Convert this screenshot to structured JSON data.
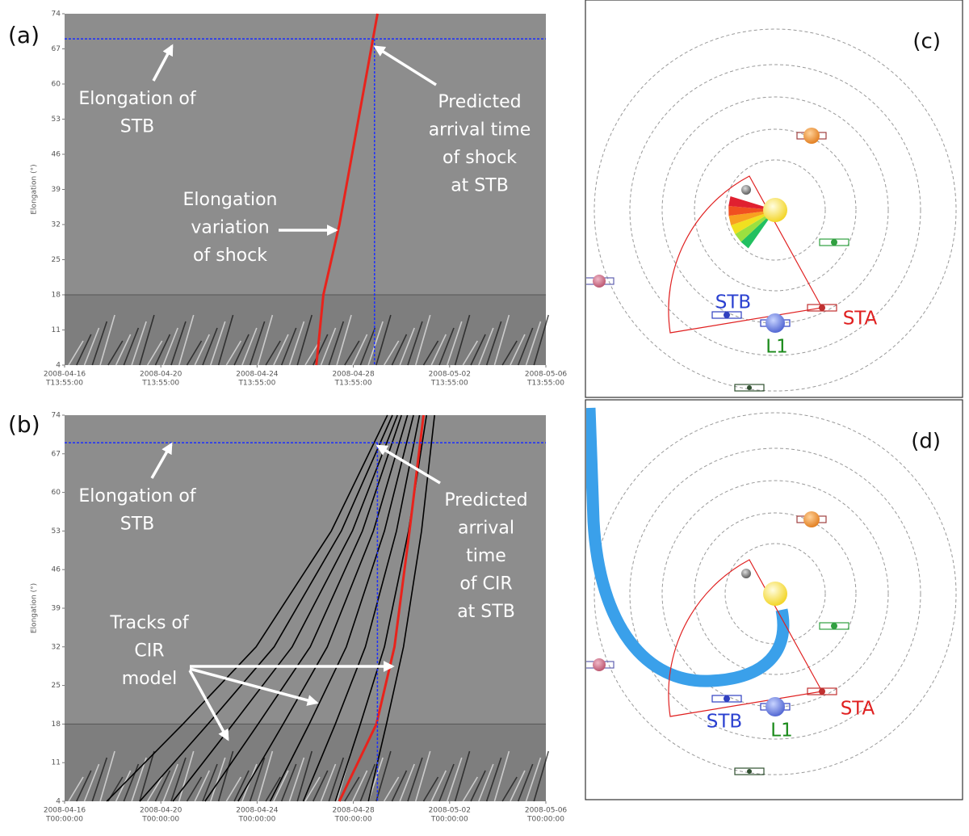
{
  "chart_data": [
    {
      "type": "line",
      "panel_label": "(a)",
      "ylabel": "Elongation (°)",
      "ylim": [
        4,
        74
      ],
      "yticks": [
        4,
        11,
        18,
        25,
        32,
        39,
        46,
        53,
        60,
        67,
        74
      ],
      "xlim": [
        "2008-04-16T13:55:00",
        "2008-05-06T13:55:00"
      ],
      "xticks": [
        {
          "value": "2008-04-16T13:55:00",
          "label": [
            "2008-04-16",
            "T13:55:00"
          ]
        },
        {
          "value": "2008-04-20T13:55:00",
          "label": [
            "2008-04-20",
            "T13:55:00"
          ]
        },
        {
          "value": "2008-04-24T13:55:00",
          "label": [
            "2008-04-24",
            "T13:55:00"
          ]
        },
        {
          "value": "2008-04-28T13:55:00",
          "label": [
            "2008-04-28",
            "T13:55:00"
          ]
        },
        {
          "value": "2008-05-02T13:55:00",
          "label": [
            "2008-05-02",
            "T13:55:00"
          ]
        },
        {
          "value": "2008-05-06T13:55:00",
          "label": [
            "2008-05-06",
            "T13:55:00"
          ]
        }
      ],
      "series": [
        {
          "color": "#e8231c",
          "line_width": 3,
          "x": [
            "2008-04-27T01:00",
            "2008-04-27T08:00",
            "2008-04-28T00:00",
            "2008-04-28T19:00",
            "2008-04-29T14:00"
          ],
          "values": [
            4,
            18,
            32,
            53,
            74
          ]
        }
      ],
      "stb_elongation": 69,
      "predicted_arrival": "2008-04-29T11:00",
      "annotations": [
        {
          "text": [
            "Elongation of",
            "STB"
          ]
        },
        {
          "text": [
            "Predicted",
            "arrival time",
            "of shock",
            "at STB"
          ]
        },
        {
          "text": [
            "Elongation",
            "variation",
            "of shock"
          ]
        }
      ]
    },
    {
      "type": "line",
      "panel_label": "(b)",
      "ylabel": "Elongation (°)",
      "ylim": [
        4,
        74
      ],
      "yticks": [
        4,
        11,
        18,
        25,
        32,
        39,
        46,
        53,
        60,
        67,
        74
      ],
      "xlim": [
        "2008-04-16T00:00:00",
        "2008-05-06T00:00:00"
      ],
      "xticks": [
        {
          "value": "2008-04-16T00:00:00",
          "label": [
            "2008-04-16",
            "T00:00:00"
          ]
        },
        {
          "value": "2008-04-20T00:00:00",
          "label": [
            "2008-04-20",
            "T00:00:00"
          ]
        },
        {
          "value": "2008-04-24T00:00:00",
          "label": [
            "2008-04-24",
            "T00:00:00"
          ]
        },
        {
          "value": "2008-04-28T00:00:00",
          "label": [
            "2008-04-28",
            "T00:00:00"
          ]
        },
        {
          "value": "2008-05-02T00:00:00",
          "label": [
            "2008-05-02",
            "T00:00:00"
          ]
        },
        {
          "value": "2008-05-06T00:00:00",
          "label": [
            "2008-05-06",
            "T00:00:00"
          ]
        }
      ],
      "series": [
        {
          "color": "#000000",
          "line_width": 1.6,
          "x": [
            "2008-04-17T18:00",
            "2008-04-20T22:00",
            "2008-04-23T23:00",
            "2008-04-27T02:00",
            "2008-04-29T10:00"
          ],
          "values": [
            4,
            18,
            32,
            53,
            74
          ]
        },
        {
          "color": "#000000",
          "line_width": 1.6,
          "x": [
            "2008-04-19T03:00",
            "2008-04-21T23:00",
            "2008-04-24T17:00",
            "2008-04-27T12:00",
            "2008-04-29T15:00"
          ],
          "values": [
            4,
            18,
            32,
            53,
            74
          ]
        },
        {
          "color": "#000000",
          "line_width": 1.6,
          "x": [
            "2008-04-20T12:00",
            "2008-04-23T00:00",
            "2008-04-25T11:00",
            "2008-04-27T23:00",
            "2008-04-29T20:00"
          ],
          "values": [
            4,
            18,
            32,
            53,
            74
          ]
        },
        {
          "color": "#000000",
          "line_width": 1.6,
          "x": [
            "2008-04-21T20:00",
            "2008-04-24T01:00",
            "2008-04-26T05:00",
            "2008-04-28T09:00",
            "2008-04-30T00:00"
          ],
          "values": [
            4,
            18,
            32,
            53,
            74
          ]
        },
        {
          "color": "#000000",
          "line_width": 1.6,
          "x": [
            "2008-04-23T05:00",
            "2008-04-25T02:00",
            "2008-04-26T22:00",
            "2008-04-28T20:00",
            "2008-04-30T06:00"
          ],
          "values": [
            4,
            18,
            32,
            53,
            74
          ]
        },
        {
          "color": "#000000",
          "line_width": 1.6,
          "x": [
            "2008-04-24T13:00",
            "2008-04-26T04:00",
            "2008-04-27T17:00",
            "2008-04-29T07:00",
            "2008-04-30T12:00"
          ],
          "values": [
            4,
            18,
            32,
            53,
            74
          ]
        },
        {
          "color": "#000000",
          "line_width": 1.6,
          "x": [
            "2008-04-25T22:00",
            "2008-04-27T06:00",
            "2008-04-28T12:00",
            "2008-04-29T19:00",
            "2008-04-30T18:00"
          ],
          "values": [
            4,
            18,
            32,
            53,
            74
          ]
        },
        {
          "color": "#000000",
          "line_width": 1.6,
          "x": [
            "2008-04-27T06:00",
            "2008-04-28T07:00",
            "2008-04-29T07:00",
            "2008-04-30T07:00",
            "2008-05-01T01:00"
          ],
          "values": [
            4,
            18,
            32,
            53,
            74
          ]
        },
        {
          "color": "#000000",
          "line_width": 1.6,
          "x": [
            "2008-04-28T15:00",
            "2008-04-29T09:00",
            "2008-04-30T02:00",
            "2008-04-30T20:00",
            "2008-05-01T09:00"
          ],
          "values": [
            4,
            18,
            32,
            53,
            74
          ]
        },
        {
          "color": "#e8231c",
          "line_width": 3,
          "x": [
            "2008-04-27T10:00",
            "2008-04-28T23:00",
            "2008-04-29T17:00",
            "2008-04-30T08:00",
            "2008-04-30T22:00"
          ],
          "values": [
            4,
            18,
            32,
            53,
            74
          ]
        }
      ],
      "stb_elongation": 69,
      "predicted_arrival": "2008-04-29T00:00",
      "annotations": [
        {
          "text": [
            "Elongation of",
            "STB"
          ]
        },
        {
          "text": [
            "Predicted",
            "arrival",
            "time",
            "of CIR",
            "at STB"
          ]
        },
        {
          "text": [
            "Tracks of",
            "CIR",
            "model"
          ]
        }
      ]
    }
  ],
  "diagrams": [
    {
      "panel_label": "(c)",
      "spiral": false,
      "labels": {
        "stb": "STB",
        "l1": "L1",
        "sta": "STA"
      }
    },
    {
      "panel_label": "(d)",
      "spiral": true,
      "labels": {
        "stb": "STB",
        "l1": "L1",
        "sta": "STA"
      }
    }
  ]
}
